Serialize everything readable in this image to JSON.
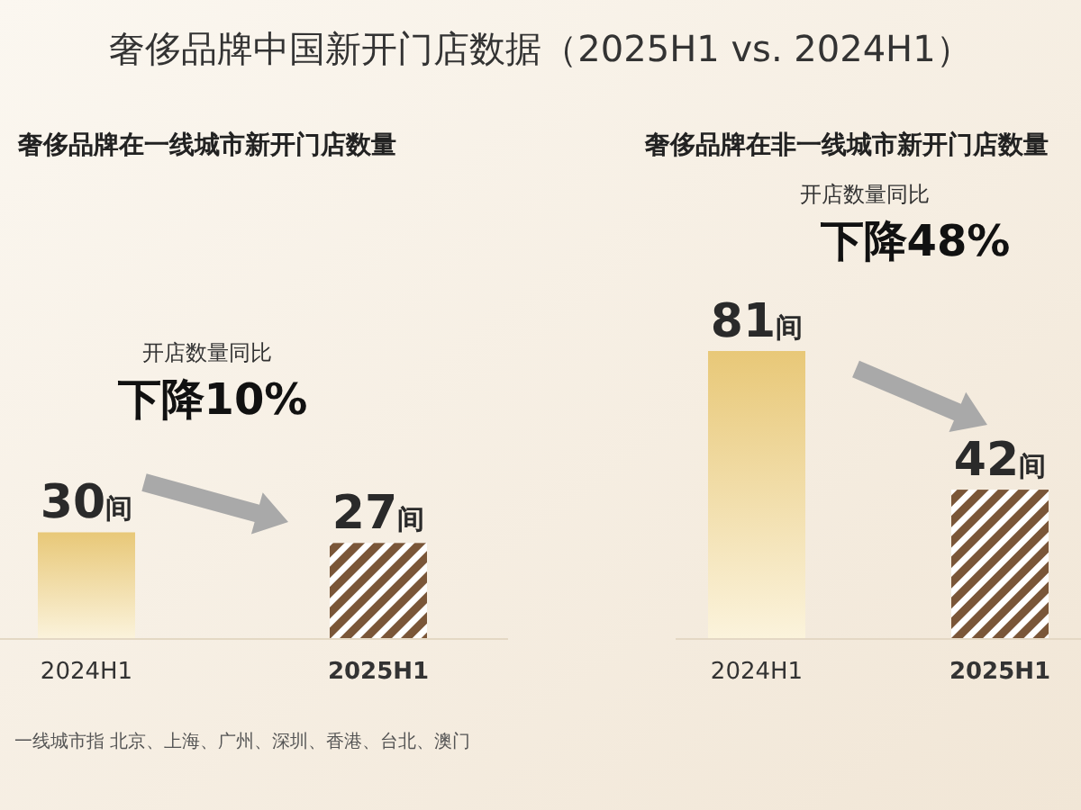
{
  "chart_data": [
    {
      "type": "bar",
      "title": "奢侈品牌中国新开门店数据（2025H1 vs. 2024H1）",
      "subtitle": "奢侈品牌在一线城市新开门店数量",
      "categories": [
        "2024H1",
        "2025H1"
      ],
      "values": [
        30,
        27
      ],
      "colors": [
        "#e8c878",
        "#7a5638"
      ],
      "value_labels": [
        "30间",
        "27间"
      ],
      "annotations": [
        "开店数量同比",
        "下降10%",
        "一线城市指 北京、上海、广州、深圳、香港、台北、澳门"
      ]
    },
    {
      "type": "bar",
      "subtitle": "奢侈品牌在非一线城市新开门店数量",
      "categories": [
        "2024H1",
        "2025H1"
      ],
      "values": [
        81,
        42
      ],
      "colors": [
        "#e8c878",
        "#7a5638"
      ],
      "value_labels": [
        "81间",
        "42间"
      ],
      "annotations": [
        "开店数量同比",
        "下降48%"
      ]
    }
  ]
}
